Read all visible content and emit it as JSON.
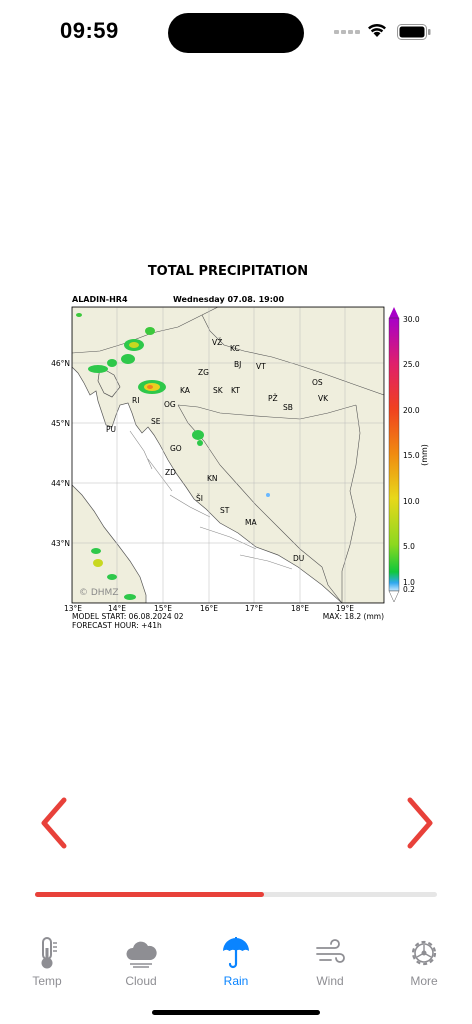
{
  "status_bar": {
    "time": "09:59"
  },
  "chart": {
    "title": "TOTAL PRECIPITATION",
    "model": "ALADIN-HR4",
    "valid_time": "Wednesday 07.08. 19:00",
    "lat_labels": [
      "46°N",
      "45°N",
      "44°N",
      "43°N"
    ],
    "lon_labels": [
      "13°E",
      "14°E",
      "15°E",
      "16°E",
      "17°E",
      "18°E",
      "19°E"
    ],
    "cities": [
      "VŽ",
      "KC",
      "BJ",
      "VT",
      "ZG",
      "OS",
      "VK",
      "KA",
      "SK",
      "KT",
      "PŽ",
      "SB",
      "RI",
      "OG",
      "PU",
      "SE",
      "GO",
      "ZD",
      "KN",
      "ŠI",
      "ST",
      "MA",
      "DU"
    ],
    "copyright": "© DHMZ",
    "model_start": "MODEL START: 06.08.2024 02",
    "forecast_hour": "FORECAST HOUR: +41h",
    "max_value": "MAX: 18.2 (mm)",
    "colorbar_unit": "(mm)",
    "colorbar_ticks": [
      "30.0",
      "25.0",
      "20.0",
      "15.0",
      "10.0",
      "5.0",
      "1.0",
      "0.2"
    ],
    "colors": {
      "land": "#efeedd",
      "sea": "#ffffff",
      "border": "#555555"
    }
  },
  "navigation": {
    "prev_icon": "chevron-left-icon",
    "next_icon": "chevron-right-icon",
    "accent": "#e8413a"
  },
  "progress": {
    "fraction": 0.57
  },
  "tabs": [
    {
      "label": "Temp",
      "icon": "thermometer-icon"
    },
    {
      "label": "Cloud",
      "icon": "cloud-icon"
    },
    {
      "label": "Rain",
      "icon": "umbrella-icon",
      "active": true
    },
    {
      "label": "Wind",
      "icon": "wind-icon"
    },
    {
      "label": "More",
      "icon": "gear-icon"
    }
  ]
}
